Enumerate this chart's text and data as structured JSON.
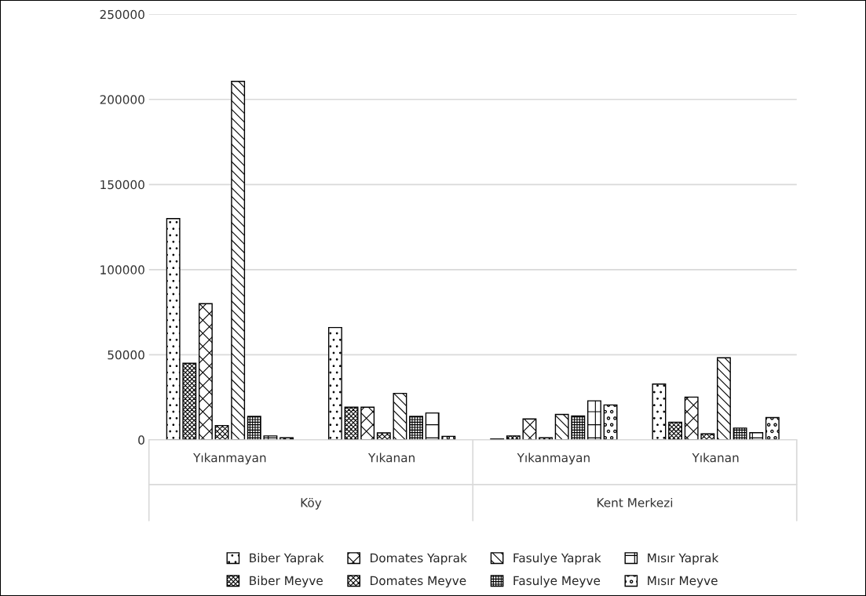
{
  "chart_data": {
    "type": "bar",
    "categories": [
      "Yıkanmayan",
      "Yıkanan",
      "Yıkanmayan",
      "Yıkanan"
    ],
    "annotations": [
      "Köy",
      "Kent Merkezi"
    ],
    "series": [
      {
        "name": "Biber Yaprak",
        "color": "#000000",
        "values": [
          130000,
          66000,
          500,
          32800
        ]
      },
      {
        "name": "Biber Meyve",
        "color": "#000000",
        "values": [
          45000,
          19200,
          2300,
          10300
        ]
      },
      {
        "name": "Domates Yaprak",
        "color": "#000000",
        "values": [
          80000,
          19200,
          12300,
          25100
        ]
      },
      {
        "name": "Domates Meyve",
        "color": "#000000",
        "values": [
          8400,
          4100,
          1200,
          3500
        ]
      },
      {
        "name": "Fasulye Yaprak",
        "color": "#000000",
        "values": [
          210600,
          27300,
          14900,
          48200
        ]
      },
      {
        "name": "Fasulye Meyve",
        "color": "#000000",
        "values": [
          13800,
          13800,
          14000,
          6900
        ]
      },
      {
        "name": "Mısır Yaprak",
        "color": "#000000",
        "values": [
          2300,
          15800,
          22900,
          4200
        ]
      },
      {
        "name": "Mısır Meyve",
        "color": "#000000",
        "values": [
          1200,
          2100,
          20500,
          13100
        ]
      }
    ],
    "ylim": [
      0,
      250000
    ],
    "yticks": [
      0,
      50000,
      100000,
      150000,
      200000,
      250000
    ],
    "grid": "y",
    "legend": "bottom"
  }
}
